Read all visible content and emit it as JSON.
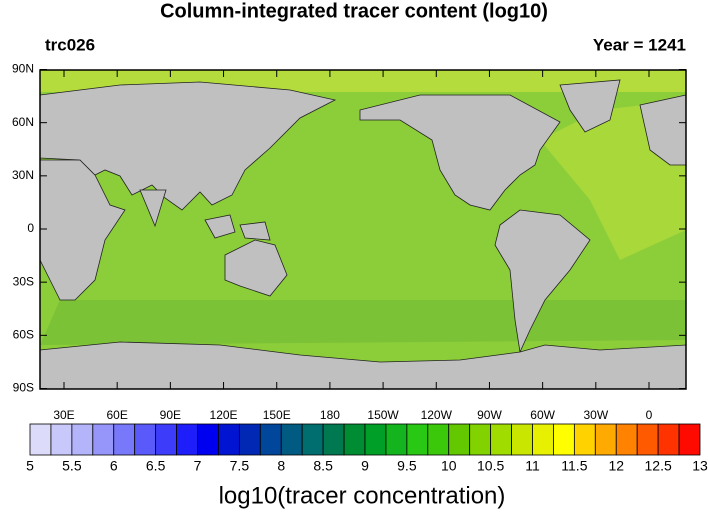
{
  "title": "Column-integrated tracer content (log10)",
  "left_label": "trc026",
  "right_label": "Year = 1241",
  "lat_ticks": [
    {
      "value": 90,
      "label": "90N"
    },
    {
      "value": 60,
      "label": "60N"
    },
    {
      "value": 30,
      "label": "30N"
    },
    0,
    {
      "value": -30,
      "label": "30S"
    },
    {
      "value": -60,
      "label": "60S"
    },
    {
      "value": -90,
      "label": "90S"
    }
  ],
  "lon_ticks": [
    {
      "value": 30,
      "label": "30E"
    },
    {
      "value": 60,
      "label": "60E"
    },
    {
      "value": 90,
      "label": "90E"
    },
    {
      "value": 120,
      "label": "120E"
    },
    {
      "value": 150,
      "label": "150E"
    },
    180,
    {
      "value": 210,
      "label": "150W"
    },
    {
      "value": 240,
      "label": "120W"
    },
    {
      "value": 270,
      "label": "90W"
    },
    {
      "value": 300,
      "label": "60W"
    },
    {
      "value": 330,
      "label": "30W"
    },
    {
      "value": 360,
      "label": "0"
    }
  ],
  "colorbar": {
    "title": "log10(tracer concentration)",
    "levels": [
      5,
      5.5,
      6,
      6.5,
      7,
      7.5,
      8,
      8.5,
      9,
      9.5,
      10,
      10.5,
      11,
      11.5,
      12,
      12.5,
      13
    ],
    "colors": [
      "#dcdcfa",
      "#c8c8fa",
      "#b4b4fa",
      "#9696fa",
      "#7878fa",
      "#5a5afa",
      "#3c3cfa",
      "#1e1efa",
      "#0000f0",
      "#0014d2",
      "#0028b4",
      "#00469a",
      "#005a82",
      "#006e6e",
      "#007850",
      "#008c32",
      "#00a028",
      "#14b41e",
      "#28c814",
      "#3cc80a",
      "#64c800",
      "#82d200",
      "#a0dc00",
      "#c8e600",
      "#e6f000",
      "#ffff00",
      "#ffd200",
      "#ffaa00",
      "#ff8200",
      "#ff5a00",
      "#ff3200",
      "#ff0a00"
    ]
  }
}
